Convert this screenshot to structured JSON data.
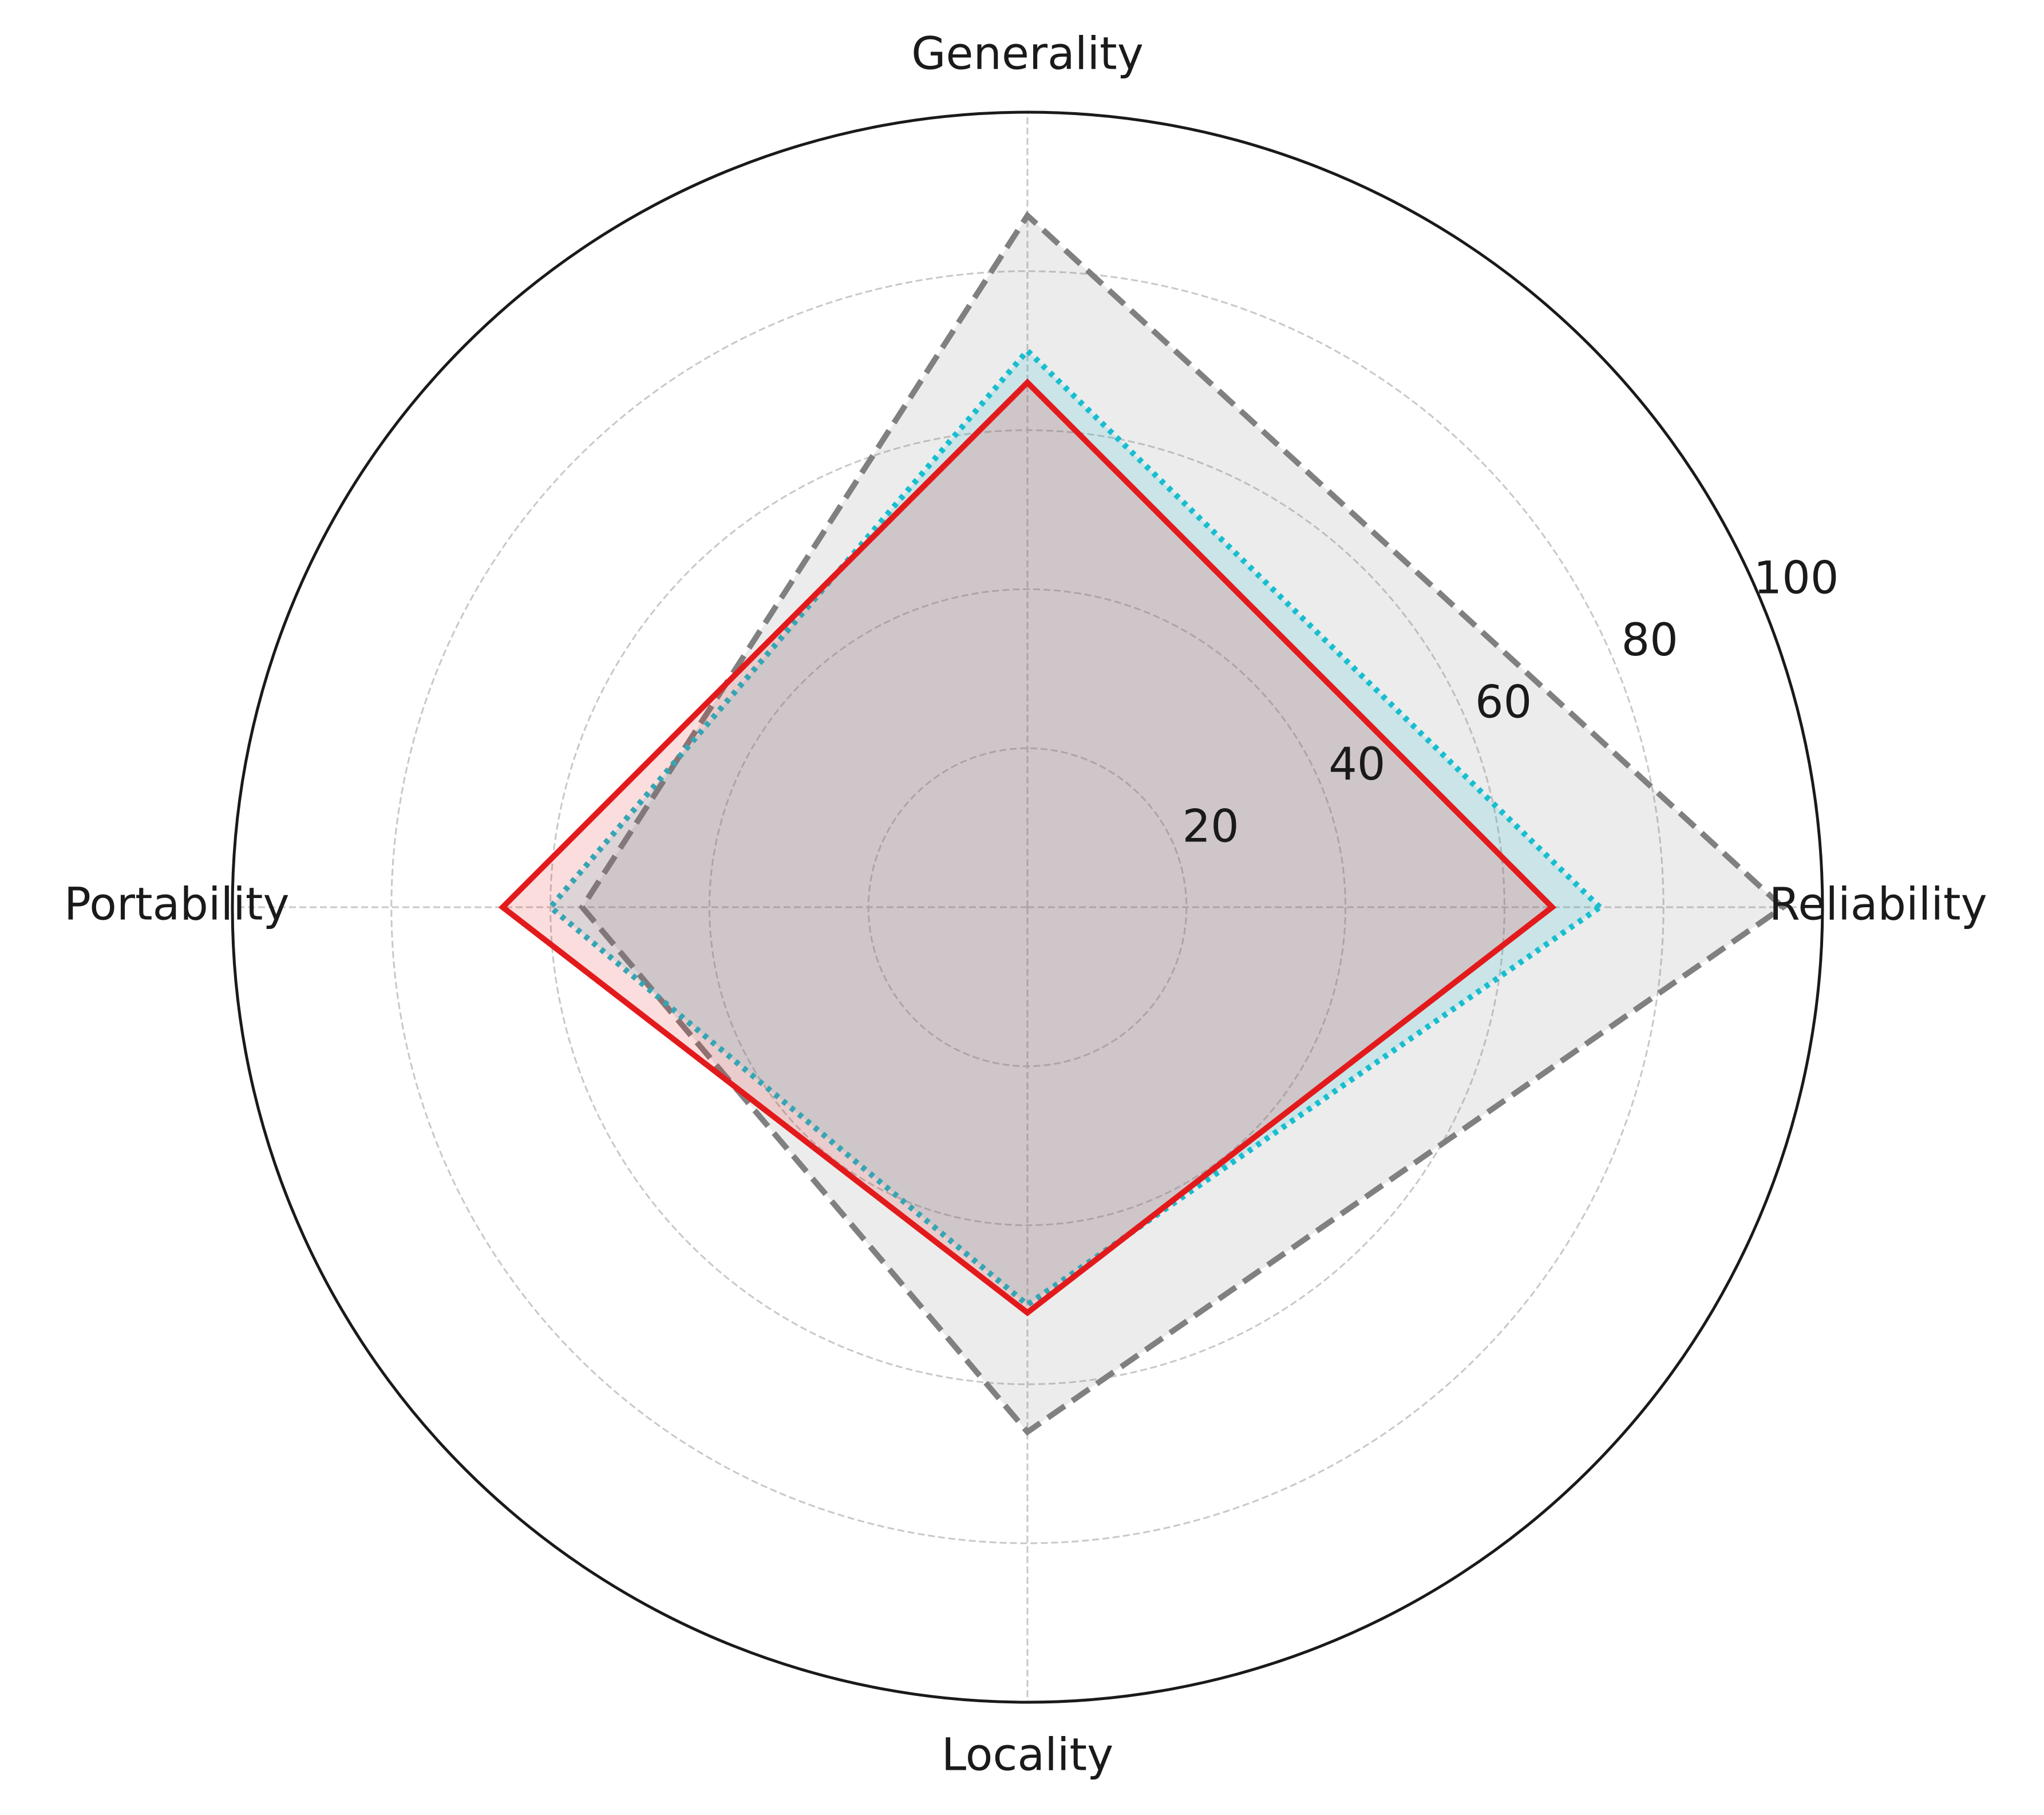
{
  "chart_data": {
    "type": "radar",
    "categories": [
      "Reliability",
      "Generality",
      "Portability",
      "Locality"
    ],
    "series": [
      {
        "color": "#808080",
        "linestyle": "dashed",
        "values": [
          95,
          87,
          56,
          66
        ]
      },
      {
        "color": "#17becf",
        "linestyle": "dotted",
        "values": [
          72,
          70,
          60,
          50
        ]
      },
      {
        "color": "#e31a1c",
        "linestyle": "solid",
        "values": [
          66,
          66,
          66,
          51
        ]
      }
    ],
    "rlim": [
      0,
      100
    ],
    "rticks": [
      20,
      40,
      60,
      80,
      100
    ],
    "grid": true
  }
}
